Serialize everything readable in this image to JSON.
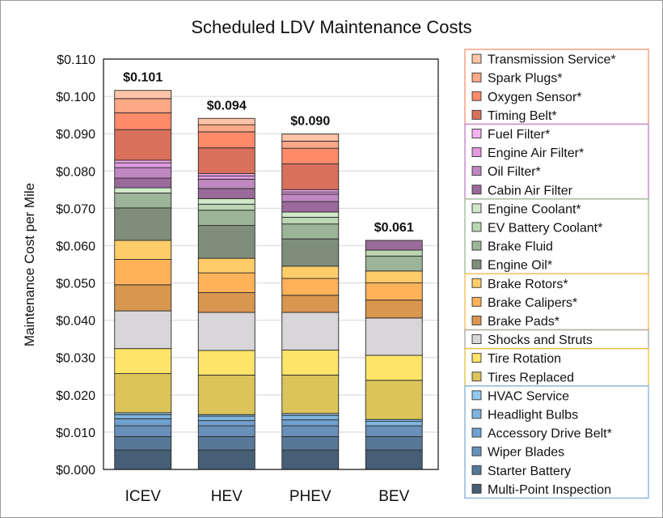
{
  "chart_data": {
    "type": "bar",
    "stacked": true,
    "title": "Scheduled LDV Maintenance Costs",
    "xlabel": "",
    "ylabel": "Maintenance Cost per Mile",
    "ylim": [
      0,
      0.11
    ],
    "yticks": [
      "$0.000",
      "$0.010",
      "$0.020",
      "$0.030",
      "$0.040",
      "$0.050",
      "$0.060",
      "$0.070",
      "$0.080",
      "$0.090",
      "$0.100",
      "$0.110"
    ],
    "grid": true,
    "legend_position": "right",
    "categories": [
      "ICEV",
      "HEV",
      "PHEV",
      "BEV"
    ],
    "totals": [
      "$0.101",
      "$0.094",
      "$0.090",
      "$0.061"
    ],
    "series": [
      {
        "name": "Transmission Service*",
        "color": "#FFC4A8",
        "values": [
          0.0022,
          0.0017,
          0.0019,
          0
        ]
      },
      {
        "name": "Spark Plugs*",
        "color": "#FFA888",
        "values": [
          0.0038,
          0.0019,
          0.0019,
          0
        ]
      },
      {
        "name": "Oxygen Sensor*",
        "color": "#FF8A6A",
        "values": [
          0.0045,
          0.0043,
          0.0042,
          0
        ]
      },
      {
        "name": "Timing Belt*",
        "color": "#D9705C",
        "values": [
          0.0082,
          0.0069,
          0.0069,
          0
        ]
      },
      {
        "name": "Fuel Filter*",
        "color": "#F8B0F0",
        "values": [
          0.0007,
          0.0006,
          0.0006,
          0
        ]
      },
      {
        "name": "Engine Air Filter*",
        "color": "#E09AE0",
        "values": [
          0.0013,
          0.0009,
          0.0006,
          0
        ]
      },
      {
        "name": "Oil Filter*",
        "color": "#C088C0",
        "values": [
          0.0028,
          0.0025,
          0.002,
          0
        ]
      },
      {
        "name": "Cabin Air Filter",
        "color": "#9A6A9A",
        "values": [
          0.0026,
          0.0027,
          0.0028,
          0.0026
        ]
      },
      {
        "name": "Engine Coolant*",
        "color": "#D0E8C8",
        "values": [
          0.0014,
          0.0015,
          0.0014,
          0
        ]
      },
      {
        "name": "EV Battery Coolant*",
        "color": "#BCD6B4",
        "values": [
          0,
          0.0016,
          0.0018,
          0.0016
        ]
      },
      {
        "name": "Brake Fluid",
        "color": "#9CB498",
        "values": [
          0.004,
          0.0041,
          0.004,
          0.004
        ]
      },
      {
        "name": "Engine Oil*",
        "color": "#7E8E7A",
        "values": [
          0.0087,
          0.0088,
          0.0073,
          0
        ]
      },
      {
        "name": "Brake Rotors*",
        "color": "#FFCC6A",
        "values": [
          0.0051,
          0.0039,
          0.0033,
          0.0032
        ]
      },
      {
        "name": "Brake Calipers*",
        "color": "#FFB25A",
        "values": [
          0.0068,
          0.0053,
          0.0045,
          0.0046
        ]
      },
      {
        "name": "Brake Pads*",
        "color": "#D9964E",
        "values": [
          0.007,
          0.0053,
          0.0046,
          0.0048
        ]
      },
      {
        "name": "Shocks and Struts",
        "color": "#D8D6D8",
        "values": [
          0.0101,
          0.0102,
          0.0101,
          0.01
        ]
      },
      {
        "name": "Tire Rotation",
        "color": "#FFE46A",
        "values": [
          0.0067,
          0.0066,
          0.0067,
          0.0067
        ]
      },
      {
        "name": "Tires Replaced",
        "color": "#DCC45A",
        "values": [
          0.0105,
          0.0106,
          0.0103,
          0.0105
        ]
      },
      {
        "name": "HVAC Service",
        "color": "#90C8F0",
        "values": [
          0.0005,
          0.0004,
          0.0005,
          0.0005
        ]
      },
      {
        "name": "Headlight Bulbs",
        "color": "#80B4E0",
        "values": [
          0.0011,
          0.0012,
          0.0012,
          0.0012
        ]
      },
      {
        "name": "Accessory Drive Belt*",
        "color": "#70A0D0",
        "values": [
          0.0019,
          0.0014,
          0.0016,
          0
        ]
      },
      {
        "name": "Wiper Blades",
        "color": "#6890B8",
        "values": [
          0.0029,
          0.0029,
          0.0029,
          0.0029
        ]
      },
      {
        "name": "Starter Battery",
        "color": "#587898",
        "values": [
          0.0036,
          0.0036,
          0.0036,
          0.0036
        ]
      },
      {
        "name": "Multi-Point Inspection",
        "color": "#465E76",
        "values": [
          0.0052,
          0.0052,
          0.0052,
          0.0052
        ]
      }
    ],
    "legend_groups": [
      {
        "items": [
          0,
          3
        ],
        "color": "#F4A080"
      },
      {
        "items": [
          4,
          7
        ],
        "color": "#C890D0"
      },
      {
        "items": [
          8,
          11
        ],
        "color": "#A8C0A0"
      },
      {
        "items": [
          12,
          14
        ],
        "color": "#F8C060"
      },
      {
        "items": [
          15,
          15
        ],
        "color": "#B0B0B0"
      },
      {
        "items": [
          16,
          17
        ],
        "color": "#E8C850"
      },
      {
        "items": [
          18,
          23
        ],
        "color": "#90B8E0"
      }
    ]
  }
}
